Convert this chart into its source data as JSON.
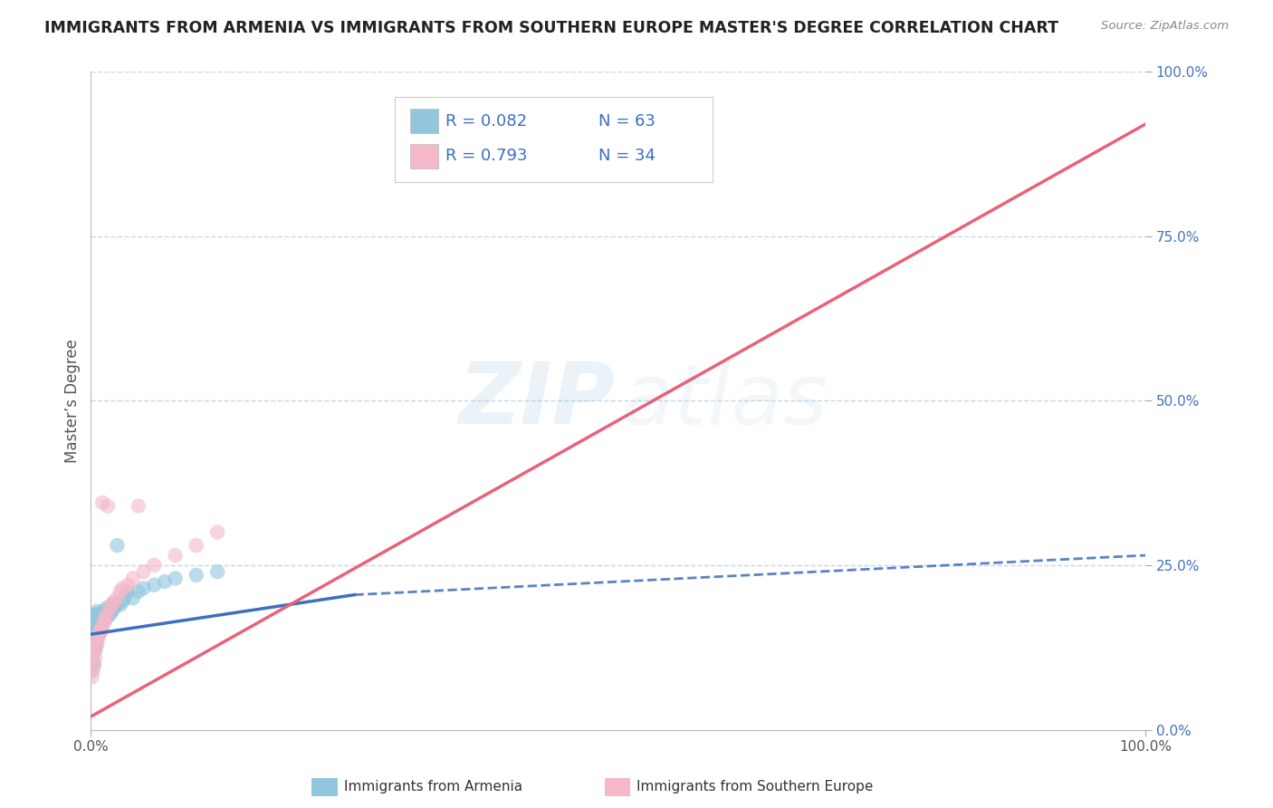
{
  "title": "IMMIGRANTS FROM ARMENIA VS IMMIGRANTS FROM SOUTHERN EUROPE MASTER'S DEGREE CORRELATION CHART",
  "source": "Source: ZipAtlas.com",
  "ylabel": "Master’s Degree",
  "xlim": [
    0.0,
    1.0
  ],
  "ylim": [
    0.0,
    1.0
  ],
  "color_armenia": "#92c5de",
  "color_southern": "#f4b8c8",
  "color_trend_armenia": "#3d6fbe",
  "color_trend_southern": "#e8637a",
  "background_color": "#ffffff",
  "grid_color": "#c0d4e8",
  "title_fontsize": 12.5,
  "watermark_zip_color": "#7ab0d8",
  "watermark_atlas_color": "#b0cce0",
  "armenia_scatter_x": [
    0.001,
    0.001,
    0.002,
    0.002,
    0.002,
    0.002,
    0.002,
    0.003,
    0.003,
    0.003,
    0.003,
    0.003,
    0.004,
    0.004,
    0.004,
    0.004,
    0.005,
    0.005,
    0.005,
    0.005,
    0.006,
    0.006,
    0.006,
    0.006,
    0.007,
    0.007,
    0.007,
    0.008,
    0.008,
    0.008,
    0.009,
    0.009,
    0.01,
    0.01,
    0.011,
    0.011,
    0.012,
    0.012,
    0.013,
    0.014,
    0.015,
    0.015,
    0.016,
    0.017,
    0.018,
    0.019,
    0.02,
    0.02,
    0.022,
    0.024,
    0.025,
    0.028,
    0.03,
    0.032,
    0.035,
    0.04,
    0.045,
    0.05,
    0.06,
    0.07,
    0.08,
    0.1,
    0.12
  ],
  "armenia_scatter_y": [
    0.09,
    0.13,
    0.1,
    0.13,
    0.14,
    0.155,
    0.17,
    0.1,
    0.13,
    0.15,
    0.16,
    0.17,
    0.12,
    0.14,
    0.155,
    0.175,
    0.13,
    0.15,
    0.16,
    0.175,
    0.14,
    0.155,
    0.165,
    0.18,
    0.145,
    0.16,
    0.17,
    0.15,
    0.165,
    0.175,
    0.155,
    0.17,
    0.16,
    0.175,
    0.165,
    0.175,
    0.17,
    0.18,
    0.175,
    0.18,
    0.17,
    0.185,
    0.175,
    0.18,
    0.175,
    0.18,
    0.18,
    0.19,
    0.185,
    0.19,
    0.28,
    0.19,
    0.195,
    0.2,
    0.21,
    0.2,
    0.21,
    0.215,
    0.22,
    0.225,
    0.23,
    0.235,
    0.24
  ],
  "armenia_trend_x": [
    0.0,
    0.25,
    1.0
  ],
  "armenia_trend_y": [
    0.145,
    0.205,
    0.265
  ],
  "armenia_trend_solid_end": 0.25,
  "southern_scatter_x": [
    0.001,
    0.001,
    0.002,
    0.002,
    0.003,
    0.003,
    0.004,
    0.005,
    0.006,
    0.007,
    0.008,
    0.009,
    0.01,
    0.01,
    0.011,
    0.012,
    0.013,
    0.014,
    0.015,
    0.016,
    0.018,
    0.02,
    0.022,
    0.025,
    0.028,
    0.03,
    0.035,
    0.04,
    0.045,
    0.05,
    0.06,
    0.08,
    0.1,
    0.12
  ],
  "southern_scatter_y": [
    0.08,
    0.11,
    0.09,
    0.12,
    0.1,
    0.135,
    0.11,
    0.125,
    0.13,
    0.14,
    0.145,
    0.15,
    0.15,
    0.155,
    0.345,
    0.16,
    0.165,
    0.17,
    0.175,
    0.34,
    0.185,
    0.19,
    0.195,
    0.2,
    0.21,
    0.215,
    0.22,
    0.23,
    0.34,
    0.24,
    0.25,
    0.265,
    0.28,
    0.3
  ],
  "southern_trend_x": [
    0.0,
    1.0
  ],
  "southern_trend_y": [
    0.02,
    0.92
  ]
}
